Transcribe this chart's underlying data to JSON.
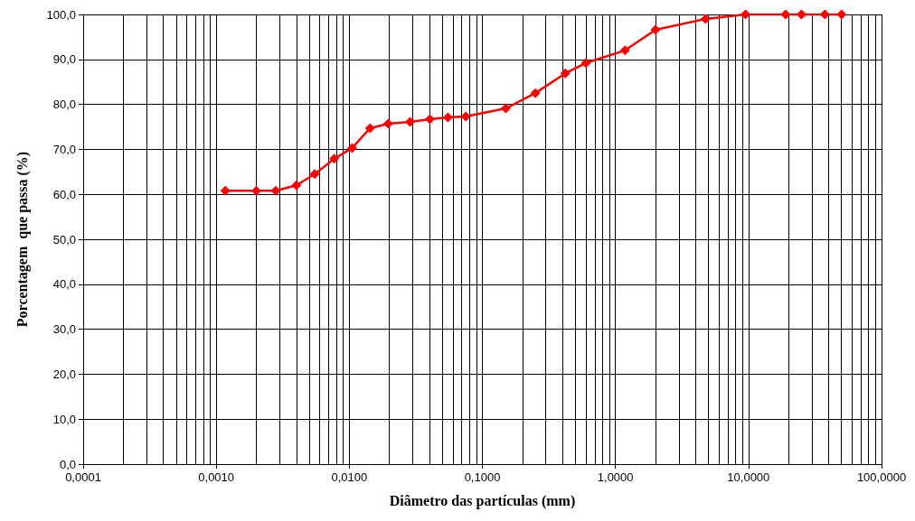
{
  "chart_data": {
    "type": "line",
    "xlabel": "Diâmetro das partículas (mm)",
    "ylabel": "Porcentagem  que passa (%)",
    "series": [
      {
        "color": "#ff0000",
        "x": [
          0.00117,
          0.002,
          0.0028,
          0.004,
          0.0055,
          0.0077,
          0.0105,
          0.0143,
          0.0196,
          0.0286,
          0.0403,
          0.0551,
          0.075,
          0.15,
          0.25,
          0.42,
          0.6,
          1.18,
          2.0,
          4.75,
          9.5,
          19,
          25,
          37.5,
          50
        ],
        "values": [
          60.8,
          60.8,
          60.8,
          62.0,
          64.5,
          67.9,
          70.3,
          74.7,
          75.7,
          76.1,
          76.7,
          77.1,
          77.3,
          79.1,
          82.5,
          86.9,
          89.2,
          92.0,
          96.6,
          99.0,
          100,
          100,
          100,
          100,
          100
        ]
      }
    ],
    "log": "x",
    "grid": true,
    "marker": "diamond",
    "line_style": "solid",
    "xlim": [
      0.0001,
      100
    ],
    "ylim": [
      0,
      100
    ],
    "xticks": [
      {
        "value": 0.0001,
        "label": "0,0001"
      },
      {
        "value": 0.001,
        "label": "0,0010"
      },
      {
        "value": 0.01,
        "label": "0,0100"
      },
      {
        "value": 0.1,
        "label": "0,1000"
      },
      {
        "value": 1,
        "label": "1,0000"
      },
      {
        "value": 10,
        "label": "10,0000"
      },
      {
        "value": 100,
        "label": "100,0000"
      }
    ],
    "yticks": [
      {
        "value": 0,
        "label": "0,0"
      },
      {
        "value": 10,
        "label": "10,0"
      },
      {
        "value": 20,
        "label": "20,0"
      },
      {
        "value": 30,
        "label": "30,0"
      },
      {
        "value": 40,
        "label": "40,0"
      },
      {
        "value": 50,
        "label": "50,0"
      },
      {
        "value": 60,
        "label": "60,0"
      },
      {
        "value": 70,
        "label": "70,0"
      },
      {
        "value": 80,
        "label": "80,0"
      },
      {
        "value": 90,
        "label": "90,0"
      },
      {
        "value": 100,
        "label": "100,0"
      }
    ]
  }
}
